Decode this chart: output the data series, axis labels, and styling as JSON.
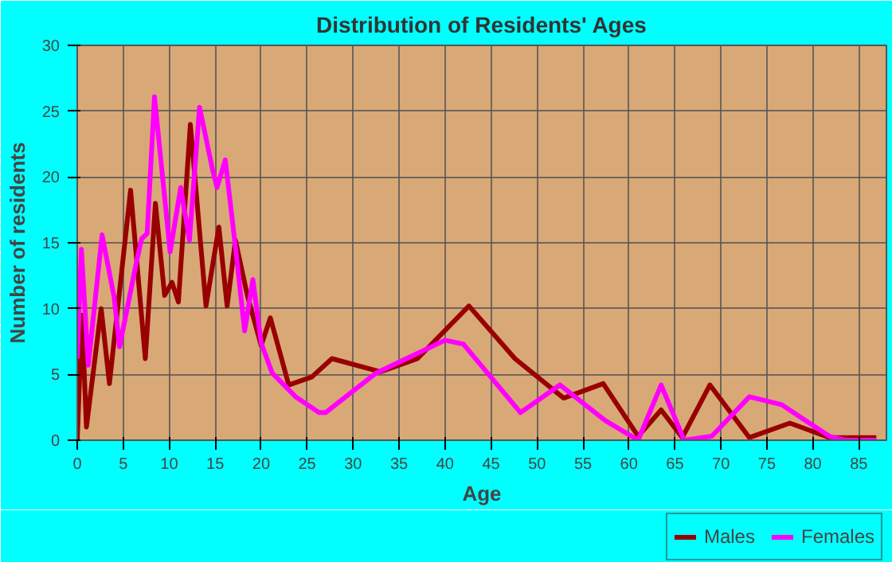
{
  "chart_data": {
    "type": "line",
    "title": "Distribution of Residents' Ages",
    "xlabel": "Age",
    "ylabel": "Number of residents",
    "xlim": [
      0,
      88
    ],
    "ylim": [
      0,
      30
    ],
    "xticks": [
      0,
      5,
      10,
      15,
      20,
      25,
      30,
      35,
      40,
      45,
      50,
      55,
      60,
      65,
      70,
      75,
      80,
      85
    ],
    "yticks": [
      0,
      5,
      10,
      15,
      20,
      25,
      30
    ],
    "grid": true,
    "legend": "bottom right",
    "series": [
      {
        "name": "Males",
        "color": "#990000",
        "x": [
          0,
          0.5,
          1,
          2.6,
          3.5,
          5.8,
          7.4,
          8.5,
          9.5,
          10.3,
          11,
          12.3,
          14,
          15.4,
          16.3,
          17.2,
          18.5,
          20,
          21,
          23,
          25.5,
          27.7,
          33,
          37,
          42.6,
          47.6,
          52.9,
          57.2,
          61,
          63.5,
          65.8,
          68.8,
          73.1,
          77.5,
          81.8,
          86.9
        ],
        "values": [
          0,
          9.5,
          1,
          10,
          4.3,
          19,
          6.2,
          18,
          11,
          12,
          10.5,
          24,
          10.2,
          16.2,
          10.2,
          15.2,
          11,
          7.2,
          9.3,
          4.2,
          4.8,
          6.2,
          5.2,
          6.2,
          10.2,
          6.2,
          3.2,
          4.3,
          0.3,
          2.3,
          0.2,
          4.2,
          0.2,
          1.3,
          0.2,
          0.2
        ]
      },
      {
        "name": "Females",
        "color": "#ff00ff",
        "x": [
          0,
          0.45,
          1.2,
          2.7,
          4,
          4.6,
          6.4,
          7,
          7.6,
          8.4,
          10.1,
          11.25,
          12.2,
          13.3,
          14.7,
          15.2,
          16.1,
          17.2,
          18.2,
          19.1,
          20,
          21.2,
          23.75,
          26.3,
          27,
          32.5,
          40,
          42,
          48.2,
          52.5,
          57.4,
          61,
          63.5,
          66,
          69,
          73.1,
          76.6,
          81.8,
          83.5,
          86.9
        ],
        "values": [
          6.2,
          14.5,
          5.7,
          15.6,
          10.9,
          7.1,
          13.4,
          15.3,
          15.7,
          26.1,
          14.3,
          19.2,
          15.2,
          25.3,
          20.6,
          19.2,
          21.3,
          14.7,
          8.3,
          12.2,
          7.4,
          5.1,
          3.3,
          2.1,
          2.1,
          5.1,
          7.6,
          7.3,
          2.1,
          4.2,
          1.5,
          0,
          4.2,
          0,
          0.3,
          3.3,
          2.7,
          0.3,
          0,
          0
        ]
      }
    ]
  }
}
